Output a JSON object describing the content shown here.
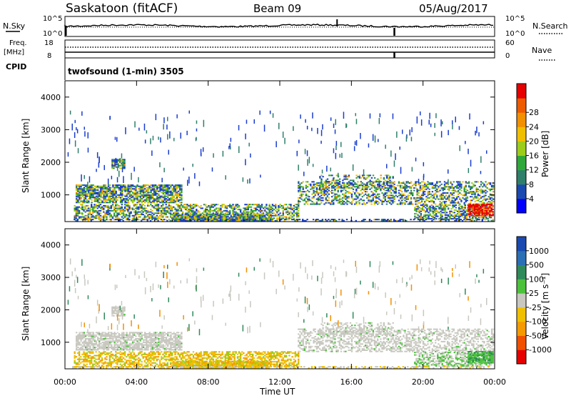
{
  "header": {
    "station": "Saskatoon (fitACF)",
    "beam": "Beam 09",
    "date": "05/Aug/2017"
  },
  "noise_panel": {
    "left_label": "N.Sky",
    "right_label": "N.Search",
    "ticks_left": [
      "10^5",
      "10^0"
    ],
    "ticks_right": [
      "10^5",
      "10^0"
    ]
  },
  "freq_panel": {
    "left_label_1": "Freq.",
    "left_label_2": "[MHz]",
    "right_label": "Nave",
    "ticks_left": [
      "18",
      "8"
    ],
    "ticks_right": [
      "60",
      "0"
    ]
  },
  "cpid": {
    "label": "CPID",
    "value": "twofsound (1-min) 3505"
  },
  "chart_data": [
    {
      "type": "heatmap",
      "ylabel": "Slant Range [km]",
      "xlabel": "",
      "ylim": [
        180,
        4500
      ],
      "yticks": [
        "1000",
        "2000",
        "3000",
        "4000"
      ],
      "colorbar": {
        "label": "Power [dB]",
        "ticks": [
          "4",
          "8",
          "12",
          "16",
          "20",
          "24",
          "28"
        ],
        "colors": [
          "#0000ff",
          "#1a4ab0",
          "#2f7f6a",
          "#2fa83a",
          "#9ccd1a",
          "#f0c000",
          "#f29000",
          "#ee5a00",
          "#e60000"
        ]
      }
    },
    {
      "type": "heatmap",
      "ylabel": "Slant Range [km]",
      "xlabel": "Time UT",
      "ylim": [
        180,
        4500
      ],
      "xticks": [
        "00:00",
        "04:00",
        "08:00",
        "12:00",
        "16:00",
        "20:00",
        "00:00"
      ],
      "yticks": [
        "1000",
        "2000",
        "3000",
        "4000"
      ],
      "colorbar": {
        "label": "Velocity [m s^-1]",
        "ticks": [
          "1000",
          "500",
          "100",
          "25",
          "-25",
          "-100",
          "-500",
          "-1000"
        ],
        "colors": [
          "#1a4ab0",
          "#2b6fb5",
          "#2f8a5a",
          "#4cc23c",
          "#c8c8c0",
          "#f0c000",
          "#f59a00",
          "#f05000",
          "#e60000"
        ]
      }
    }
  ]
}
